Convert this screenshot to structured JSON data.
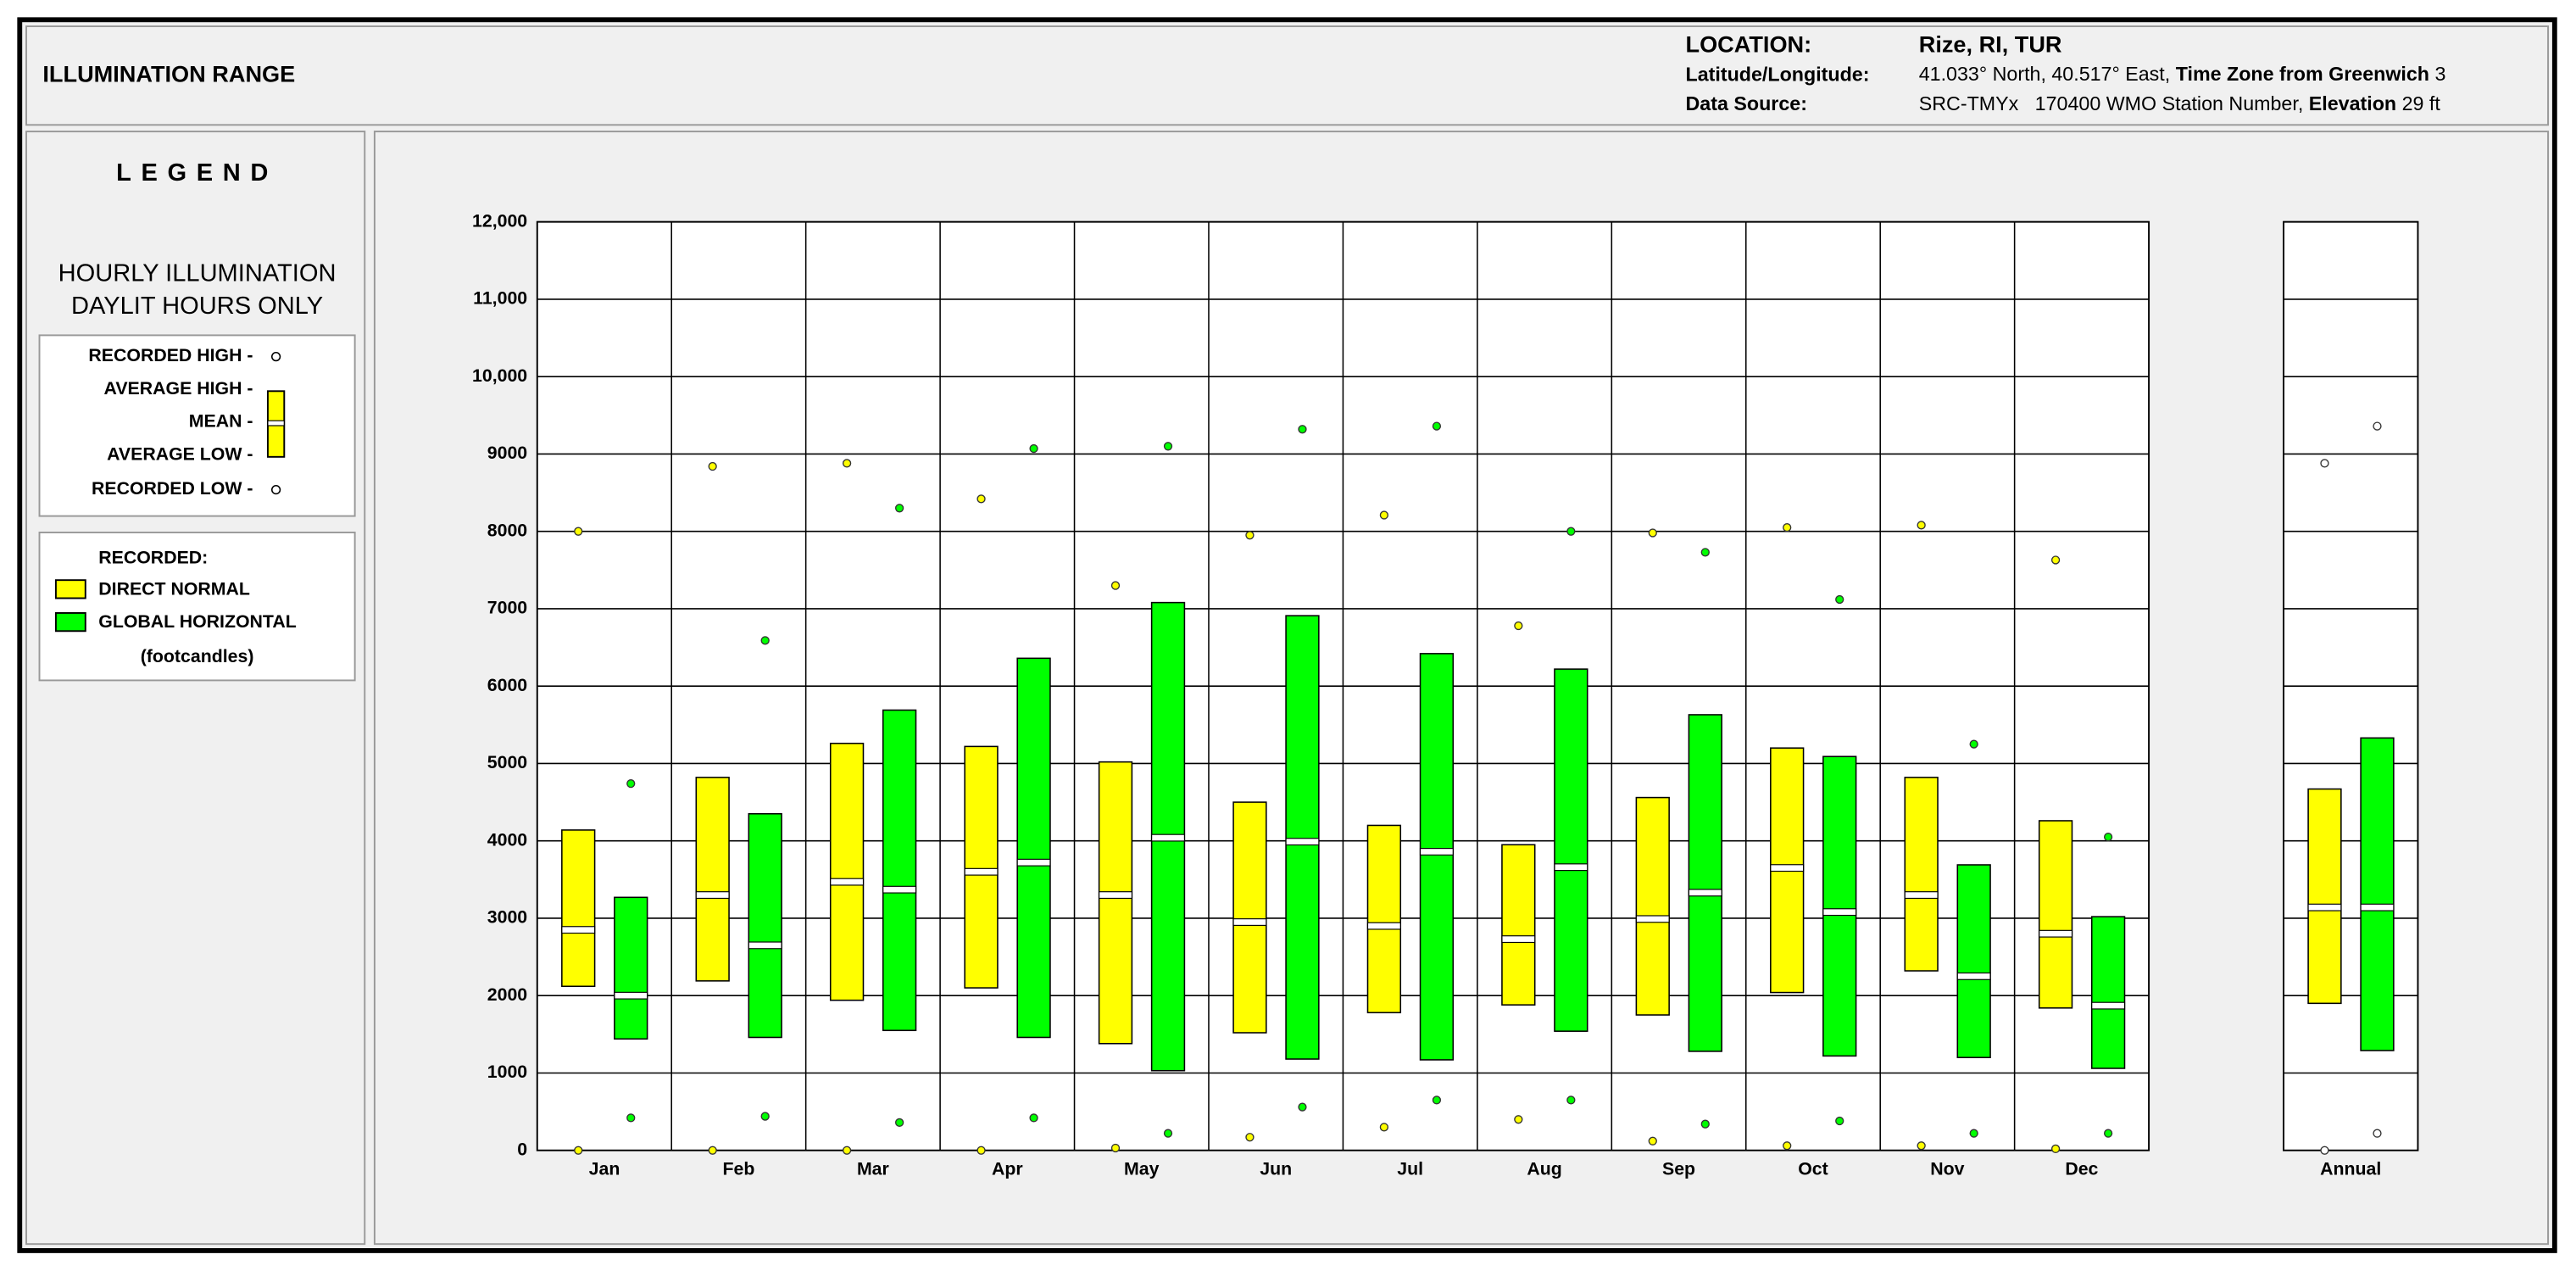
{
  "header": {
    "title": "ILLUMINATION RANGE",
    "location_label": "LOCATION:",
    "location": "Rize, RI, TUR",
    "latlon_label": "Latitude/Longitude:",
    "latlon": "41.033° North, 40.517° East,",
    "timezone_label": "Time Zone from Greenwich",
    "timezone": "3",
    "source_label": "Data Source:",
    "source": "SRC-TMYx",
    "station": "170400 WMO Station Number,",
    "elevation_label": "Elevation",
    "elevation": "29 ft"
  },
  "legend": {
    "title": "LEGEND",
    "subtitle1": "HOURLY ILLUMINATION",
    "subtitle2": "DAYLIT HOURS ONLY",
    "recorded_high": "RECORDED HIGH -",
    "average_high": "AVERAGE HIGH -",
    "mean": "MEAN -",
    "average_low": "AVERAGE LOW -",
    "recorded_low": "RECORDED LOW -",
    "recorded": "RECORDED:",
    "units": "(footcandles)"
  },
  "chart_data": {
    "type": "range",
    "categories": [
      "Jan",
      "Feb",
      "Mar",
      "Apr",
      "May",
      "Jun",
      "Jul",
      "Aug",
      "Sep",
      "Oct",
      "Nov",
      "Dec",
      "Annual"
    ],
    "ylim": [
      0,
      12000
    ],
    "yticks": [
      0,
      1000,
      2000,
      3000,
      4000,
      5000,
      6000,
      7000,
      8000,
      9000,
      {
        "value": 10000,
        "label": "10,000"
      },
      {
        "value": 11000,
        "label": "11,000"
      },
      {
        "value": 12000,
        "label": "12,000"
      }
    ],
    "grid": true,
    "series": [
      {
        "name": "DIRECT NORMAL",
        "color": "#ffff00",
        "high": [
          8000,
          8840,
          8880,
          8420,
          7300,
          7950,
          8210,
          6780,
          7980,
          8050,
          8080,
          7630,
          8880
        ],
        "avg_high": [
          4140,
          4820,
          5260,
          5220,
          5020,
          4500,
          4200,
          3950,
          4560,
          5200,
          4820,
          4260,
          4670
        ],
        "mean": [
          2850,
          3300,
          3470,
          3600,
          3300,
          2950,
          2900,
          2730,
          2990,
          3650,
          3300,
          2800,
          3140
        ],
        "avg_low": [
          2120,
          2190,
          1940,
          2100,
          1380,
          1520,
          1780,
          1880,
          1750,
          2040,
          2320,
          1840,
          1900
        ],
        "low": [
          0,
          0,
          0,
          0,
          30,
          170,
          300,
          400,
          120,
          60,
          60,
          20,
          0
        ]
      },
      {
        "name": "GLOBAL HORIZONTAL",
        "color": "#00ff00",
        "high": [
          4740,
          6590,
          8300,
          9070,
          9100,
          9320,
          9360,
          8000,
          7730,
          7120,
          5250,
          4050,
          9360
        ],
        "avg_high": [
          3270,
          4350,
          5690,
          6360,
          7080,
          6910,
          6420,
          6220,
          5630,
          5090,
          3690,
          3020,
          5330
        ],
        "mean": [
          2000,
          2650,
          3370,
          3720,
          4040,
          3990,
          3860,
          3660,
          3330,
          3080,
          2250,
          1870,
          3140
        ],
        "avg_low": [
          1440,
          1460,
          1550,
          1460,
          1030,
          1180,
          1170,
          1540,
          1280,
          1220,
          1200,
          1060,
          1290
        ],
        "low": [
          420,
          440,
          360,
          420,
          220,
          560,
          650,
          650,
          340,
          380,
          220,
          220,
          220
        ]
      }
    ]
  }
}
